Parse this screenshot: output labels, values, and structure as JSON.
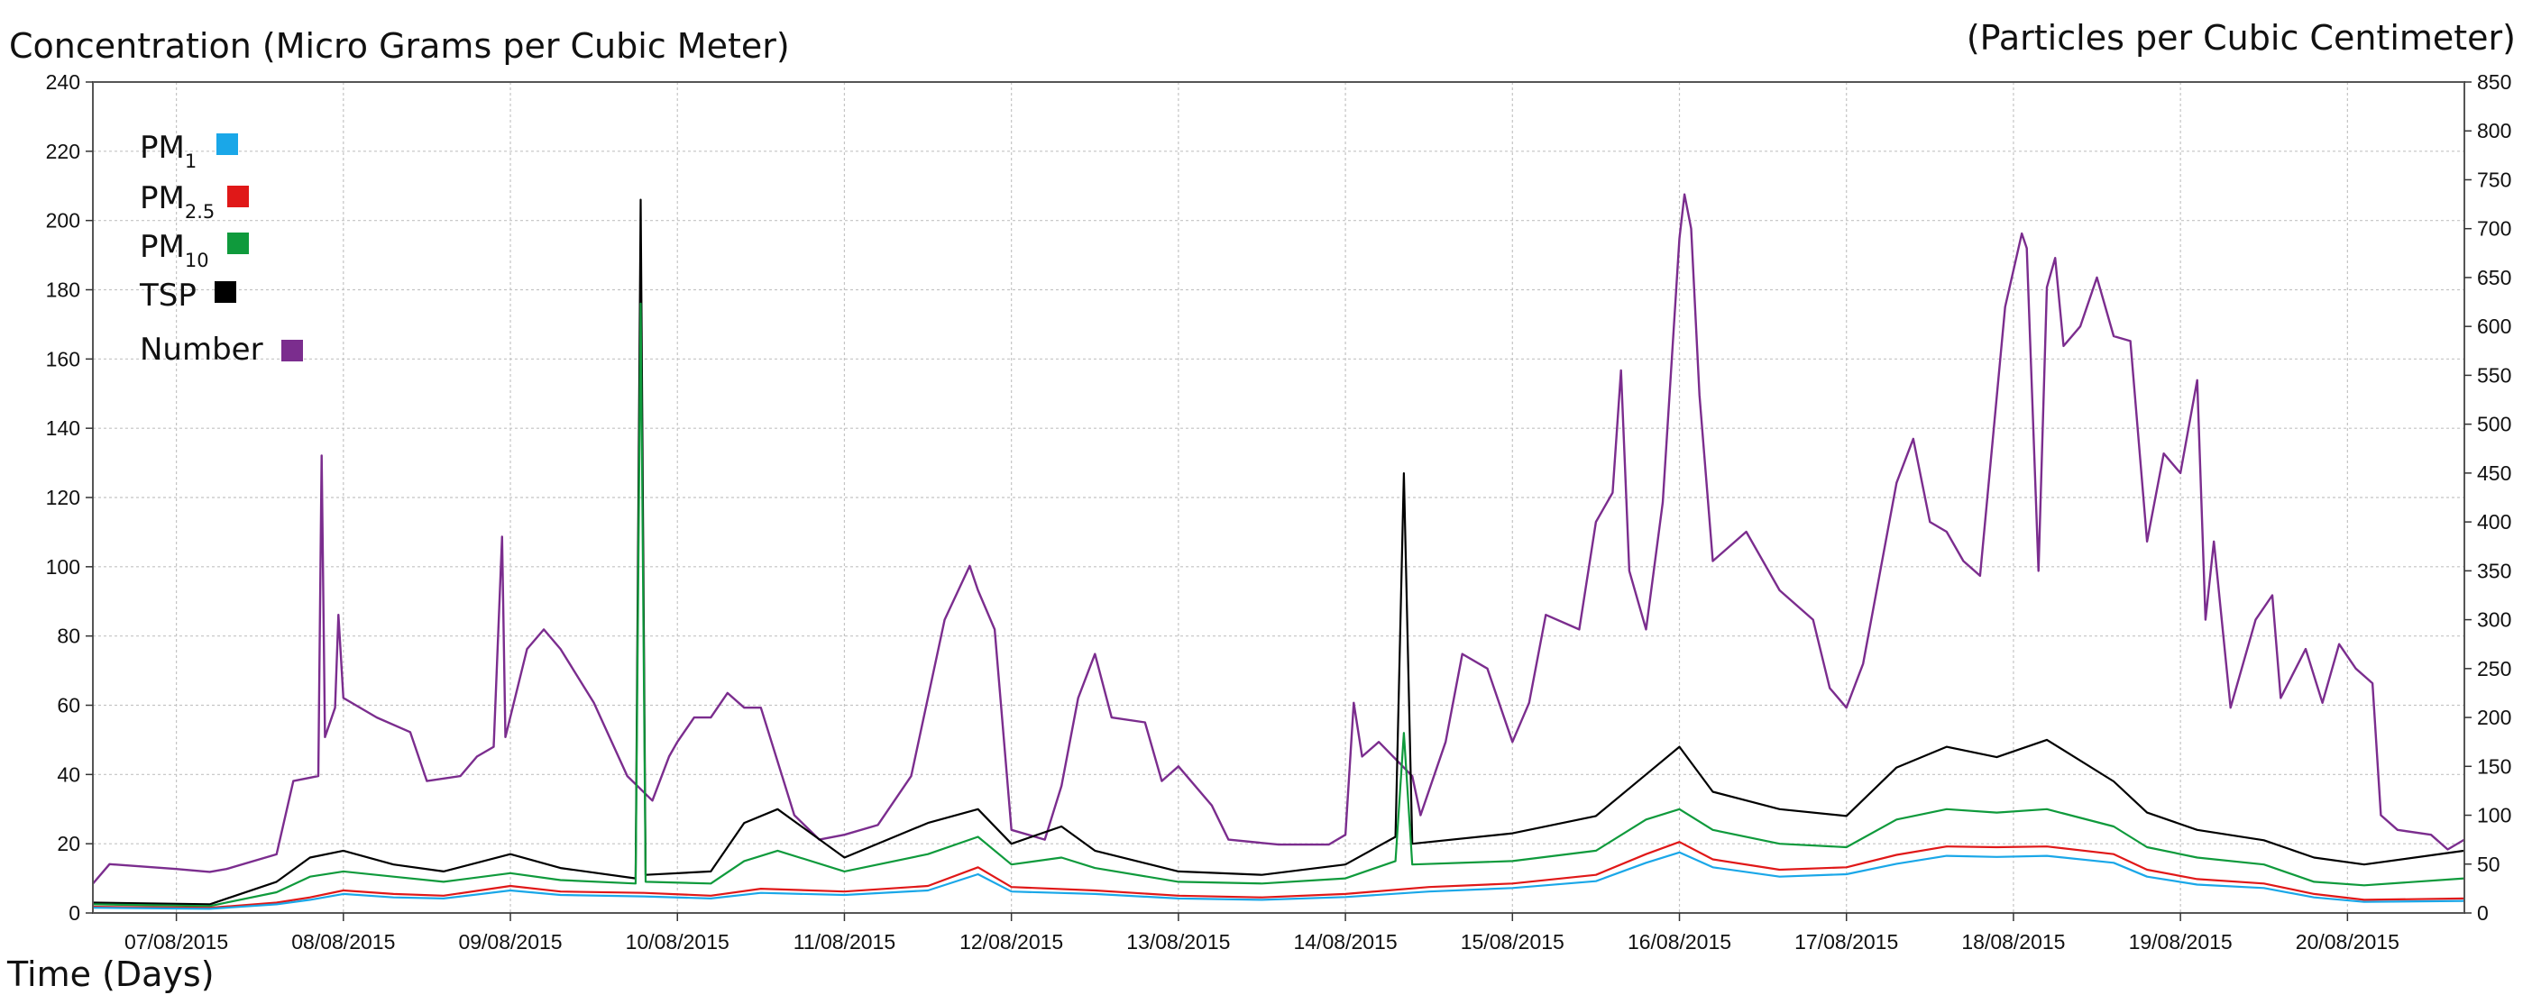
{
  "chart_data": {
    "type": "line",
    "ylabel_left": "Concentration (Micro Grams per Cubic Meter)",
    "ylabel_right": "(Particles per Cubic Centimeter)",
    "xlabel": "Time (Days)",
    "ylim_left": [
      0,
      240
    ],
    "ylim_right": [
      0,
      850
    ],
    "left_ticks": [
      0,
      20,
      40,
      60,
      80,
      100,
      120,
      140,
      160,
      180,
      200,
      220,
      240
    ],
    "right_ticks": [
      0,
      50,
      100,
      150,
      200,
      250,
      300,
      350,
      400,
      450,
      500,
      550,
      600,
      650,
      700,
      750,
      800,
      850
    ],
    "x_range_days": [
      6.5,
      20.7
    ],
    "grid": true,
    "legend_position": "top-left",
    "x_tick_labels": [
      "07/08/2015",
      "08/08/2015",
      "09/08/2015",
      "10/08/2015",
      "11/08/2015",
      "12/08/2015",
      "13/08/2015",
      "14/08/2015",
      "15/08/2015",
      "16/08/2015",
      "17/08/2015",
      "18/08/2015",
      "19/08/2015",
      "20/08/2015"
    ],
    "x_tick_days": [
      7,
      8,
      9,
      10,
      11,
      12,
      13,
      14,
      15,
      16,
      17,
      18,
      19,
      20
    ],
    "series": [
      {
        "key": "pm1",
        "name": "PM",
        "name_sub": "1",
        "color": "#1aa7e8",
        "axis": "left",
        "points": [
          [
            6.5,
            1.5
          ],
          [
            7.2,
            1.2
          ],
          [
            7.6,
            2.5
          ],
          [
            7.8,
            3.8
          ],
          [
            8.0,
            5.5
          ],
          [
            8.3,
            4.5
          ],
          [
            8.6,
            4.2
          ],
          [
            9.0,
            6.5
          ],
          [
            9.3,
            5.2
          ],
          [
            9.8,
            4.8
          ],
          [
            10.2,
            4.2
          ],
          [
            10.5,
            5.8
          ],
          [
            11.0,
            5.2
          ],
          [
            11.5,
            6.5
          ],
          [
            11.8,
            11.2
          ],
          [
            12.0,
            6.2
          ],
          [
            12.5,
            5.5
          ],
          [
            13.0,
            4.2
          ],
          [
            13.5,
            3.8
          ],
          [
            14.0,
            4.6
          ],
          [
            14.5,
            6.2
          ],
          [
            15.0,
            7.2
          ],
          [
            15.5,
            9.2
          ],
          [
            15.8,
            14.5
          ],
          [
            16.0,
            17.5
          ],
          [
            16.2,
            13.2
          ],
          [
            16.6,
            10.5
          ],
          [
            17.0,
            11.2
          ],
          [
            17.3,
            14.2
          ],
          [
            17.6,
            16.5
          ],
          [
            17.9,
            16.2
          ],
          [
            18.2,
            16.5
          ],
          [
            18.6,
            14.5
          ],
          [
            18.8,
            10.5
          ],
          [
            19.1,
            8.2
          ],
          [
            19.5,
            7.2
          ],
          [
            19.8,
            4.5
          ],
          [
            20.1,
            3.2
          ],
          [
            20.7,
            3.5
          ]
        ]
      },
      {
        "key": "pm25",
        "name": "PM",
        "name_sub": "2.5",
        "color": "#e01818",
        "axis": "left",
        "points": [
          [
            6.5,
            1.8
          ],
          [
            7.2,
            1.5
          ],
          [
            7.6,
            3.0
          ],
          [
            7.8,
            4.5
          ],
          [
            8.0,
            6.5
          ],
          [
            8.3,
            5.5
          ],
          [
            8.6,
            5.0
          ],
          [
            9.0,
            7.8
          ],
          [
            9.3,
            6.2
          ],
          [
            9.8,
            5.8
          ],
          [
            10.2,
            5.0
          ],
          [
            10.5,
            7.0
          ],
          [
            11.0,
            6.2
          ],
          [
            11.5,
            7.8
          ],
          [
            11.8,
            13.2
          ],
          [
            12.0,
            7.5
          ],
          [
            12.5,
            6.5
          ],
          [
            13.0,
            5.0
          ],
          [
            13.5,
            4.5
          ],
          [
            14.0,
            5.5
          ],
          [
            14.5,
            7.5
          ],
          [
            15.0,
            8.5
          ],
          [
            15.5,
            11.0
          ],
          [
            15.8,
            17.0
          ],
          [
            16.0,
            20.5
          ],
          [
            16.2,
            15.5
          ],
          [
            16.6,
            12.5
          ],
          [
            17.0,
            13.2
          ],
          [
            17.3,
            16.8
          ],
          [
            17.6,
            19.2
          ],
          [
            17.9,
            19.0
          ],
          [
            18.2,
            19.2
          ],
          [
            18.6,
            17.0
          ],
          [
            18.8,
            12.5
          ],
          [
            19.1,
            9.8
          ],
          [
            19.5,
            8.5
          ],
          [
            19.8,
            5.5
          ],
          [
            20.1,
            3.8
          ],
          [
            20.7,
            4.2
          ]
        ]
      },
      {
        "key": "pm10",
        "name": "PM",
        "name_sub": "10",
        "color": "#0f9a3c",
        "axis": "left",
        "points": [
          [
            6.5,
            2.5
          ],
          [
            7.2,
            2.0
          ],
          [
            7.6,
            6.0
          ],
          [
            7.8,
            10.5
          ],
          [
            8.0,
            12.0
          ],
          [
            8.3,
            10.5
          ],
          [
            8.6,
            9.0
          ],
          [
            9.0,
            11.5
          ],
          [
            9.3,
            9.5
          ],
          [
            9.75,
            8.5
          ],
          [
            9.78,
            176.0
          ],
          [
            9.81,
            9.0
          ],
          [
            10.2,
            8.5
          ],
          [
            10.4,
            15.0
          ],
          [
            10.6,
            18.0
          ],
          [
            11.0,
            12.0
          ],
          [
            11.5,
            17.0
          ],
          [
            11.8,
            22.0
          ],
          [
            12.0,
            14.0
          ],
          [
            12.3,
            16.0
          ],
          [
            12.5,
            13.0
          ],
          [
            13.0,
            9.0
          ],
          [
            13.5,
            8.5
          ],
          [
            14.0,
            10.0
          ],
          [
            14.3,
            15.0
          ],
          [
            14.35,
            52.0
          ],
          [
            14.4,
            14.0
          ],
          [
            15.0,
            15.0
          ],
          [
            15.5,
            18.0
          ],
          [
            15.8,
            27.0
          ],
          [
            16.0,
            30.0
          ],
          [
            16.2,
            24.0
          ],
          [
            16.6,
            20.0
          ],
          [
            17.0,
            19.0
          ],
          [
            17.3,
            27.0
          ],
          [
            17.6,
            30.0
          ],
          [
            17.9,
            29.0
          ],
          [
            18.2,
            30.0
          ],
          [
            18.6,
            25.0
          ],
          [
            18.8,
            19.0
          ],
          [
            19.1,
            16.0
          ],
          [
            19.5,
            14.0
          ],
          [
            19.8,
            9.0
          ],
          [
            20.1,
            8.0
          ],
          [
            20.7,
            10.0
          ]
        ]
      },
      {
        "key": "tsp",
        "name": "TSP",
        "name_sub": "",
        "color": "#000000",
        "axis": "left",
        "points": [
          [
            6.5,
            3.0
          ],
          [
            7.2,
            2.5
          ],
          [
            7.6,
            9.0
          ],
          [
            7.8,
            16.0
          ],
          [
            8.0,
            18.0
          ],
          [
            8.3,
            14.0
          ],
          [
            8.6,
            12.0
          ],
          [
            9.0,
            17.0
          ],
          [
            9.3,
            13.0
          ],
          [
            9.75,
            10.0
          ],
          [
            9.78,
            206.0
          ],
          [
            9.81,
            11.0
          ],
          [
            10.2,
            12.0
          ],
          [
            10.4,
            26.0
          ],
          [
            10.6,
            30.0
          ],
          [
            11.0,
            16.0
          ],
          [
            11.5,
            26.0
          ],
          [
            11.8,
            30.0
          ],
          [
            12.0,
            20.0
          ],
          [
            12.3,
            25.0
          ],
          [
            12.5,
            18.0
          ],
          [
            13.0,
            12.0
          ],
          [
            13.5,
            11.0
          ],
          [
            14.0,
            14.0
          ],
          [
            14.3,
            22.0
          ],
          [
            14.35,
            127.0
          ],
          [
            14.4,
            20.0
          ],
          [
            15.0,
            23.0
          ],
          [
            15.5,
            28.0
          ],
          [
            15.8,
            40.0
          ],
          [
            16.0,
            48.0
          ],
          [
            16.2,
            35.0
          ],
          [
            16.6,
            30.0
          ],
          [
            17.0,
            28.0
          ],
          [
            17.3,
            42.0
          ],
          [
            17.6,
            48.0
          ],
          [
            17.9,
            45.0
          ],
          [
            18.2,
            50.0
          ],
          [
            18.6,
            38.0
          ],
          [
            18.8,
            29.0
          ],
          [
            19.1,
            24.0
          ],
          [
            19.5,
            21.0
          ],
          [
            19.8,
            16.0
          ],
          [
            20.1,
            14.0
          ],
          [
            20.7,
            18.0
          ]
        ]
      },
      {
        "key": "number",
        "name": "Number",
        "name_sub": "",
        "color": "#7b2d8e",
        "axis": "right",
        "points": [
          [
            6.5,
            30
          ],
          [
            6.6,
            50
          ],
          [
            7.0,
            45
          ],
          [
            7.2,
            42
          ],
          [
            7.3,
            45
          ],
          [
            7.6,
            60
          ],
          [
            7.7,
            135
          ],
          [
            7.85,
            140
          ],
          [
            7.87,
            468
          ],
          [
            7.89,
            180
          ],
          [
            7.95,
            210
          ],
          [
            7.97,
            305
          ],
          [
            8.0,
            220
          ],
          [
            8.2,
            200
          ],
          [
            8.4,
            185
          ],
          [
            8.5,
            135
          ],
          [
            8.7,
            140
          ],
          [
            8.8,
            160
          ],
          [
            8.9,
            170
          ],
          [
            8.95,
            385
          ],
          [
            8.97,
            180
          ],
          [
            9.1,
            270
          ],
          [
            9.2,
            290
          ],
          [
            9.3,
            270
          ],
          [
            9.5,
            215
          ],
          [
            9.7,
            140
          ],
          [
            9.85,
            115
          ],
          [
            9.95,
            160
          ],
          [
            10.0,
            175
          ],
          [
            10.1,
            200
          ],
          [
            10.2,
            200
          ],
          [
            10.3,
            225
          ],
          [
            10.4,
            210
          ],
          [
            10.5,
            210
          ],
          [
            10.7,
            100
          ],
          [
            10.85,
            75
          ],
          [
            11.0,
            80
          ],
          [
            11.2,
            90
          ],
          [
            11.4,
            140
          ],
          [
            11.6,
            300
          ],
          [
            11.75,
            355
          ],
          [
            11.8,
            330
          ],
          [
            11.9,
            290
          ],
          [
            12.0,
            85
          ],
          [
            12.2,
            75
          ],
          [
            12.3,
            130
          ],
          [
            12.4,
            220
          ],
          [
            12.5,
            265
          ],
          [
            12.6,
            200
          ],
          [
            12.8,
            195
          ],
          [
            12.9,
            135
          ],
          [
            13.0,
            150
          ],
          [
            13.2,
            110
          ],
          [
            13.3,
            75
          ],
          [
            13.6,
            70
          ],
          [
            13.9,
            70
          ],
          [
            14.0,
            80
          ],
          [
            14.05,
            215
          ],
          [
            14.1,
            160
          ],
          [
            14.2,
            175
          ],
          [
            14.4,
            140
          ],
          [
            14.45,
            100
          ],
          [
            14.6,
            175
          ],
          [
            14.7,
            265
          ],
          [
            14.85,
            250
          ],
          [
            15.0,
            175
          ],
          [
            15.1,
            215
          ],
          [
            15.2,
            305
          ],
          [
            15.4,
            290
          ],
          [
            15.5,
            400
          ],
          [
            15.6,
            430
          ],
          [
            15.65,
            555
          ],
          [
            15.7,
            350
          ],
          [
            15.8,
            290
          ],
          [
            15.9,
            420
          ],
          [
            16.0,
            690
          ],
          [
            16.03,
            735
          ],
          [
            16.07,
            700
          ],
          [
            16.12,
            530
          ],
          [
            16.2,
            360
          ],
          [
            16.4,
            390
          ],
          [
            16.6,
            330
          ],
          [
            16.8,
            300
          ],
          [
            16.9,
            230
          ],
          [
            17.0,
            210
          ],
          [
            17.1,
            255
          ],
          [
            17.3,
            440
          ],
          [
            17.4,
            485
          ],
          [
            17.5,
            400
          ],
          [
            17.6,
            390
          ],
          [
            17.7,
            360
          ],
          [
            17.8,
            345
          ],
          [
            17.95,
            620
          ],
          [
            18.05,
            695
          ],
          [
            18.08,
            680
          ],
          [
            18.15,
            350
          ],
          [
            18.2,
            640
          ],
          [
            18.25,
            670
          ],
          [
            18.3,
            580
          ],
          [
            18.4,
            600
          ],
          [
            18.5,
            650
          ],
          [
            18.6,
            590
          ],
          [
            18.7,
            585
          ],
          [
            18.8,
            380
          ],
          [
            18.9,
            470
          ],
          [
            19.0,
            450
          ],
          [
            19.1,
            545
          ],
          [
            19.15,
            300
          ],
          [
            19.2,
            380
          ],
          [
            19.3,
            210
          ],
          [
            19.45,
            300
          ],
          [
            19.55,
            325
          ],
          [
            19.6,
            220
          ],
          [
            19.75,
            270
          ],
          [
            19.85,
            215
          ],
          [
            19.95,
            275
          ],
          [
            20.05,
            250
          ],
          [
            20.15,
            235
          ],
          [
            20.2,
            100
          ],
          [
            20.3,
            85
          ],
          [
            20.5,
            80
          ],
          [
            20.6,
            65
          ],
          [
            20.7,
            75
          ]
        ]
      }
    ]
  }
}
